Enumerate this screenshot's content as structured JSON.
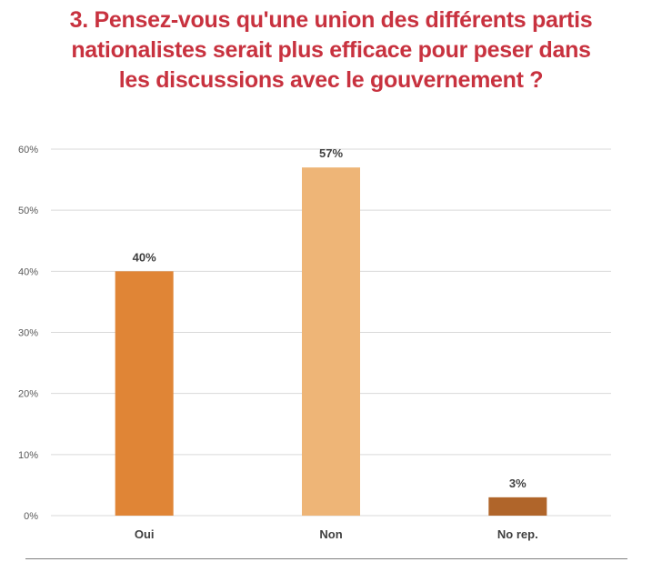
{
  "chart_data": {
    "type": "bar",
    "title_lines": [
      "3. Pensez-vous qu'une union des différents partis",
      "nationalistes serait plus efficace pour peser dans",
      "les discussions avec le gouvernement ?"
    ],
    "categories": [
      "Oui",
      "Non",
      "No rep."
    ],
    "values": [
      40,
      57,
      3
    ],
    "value_labels": [
      "40%",
      "57%",
      "3%"
    ],
    "bar_colors": [
      "#e08536",
      "#eeb577",
      "#b0652a"
    ],
    "ylim": [
      0,
      60
    ],
    "yticks": [
      0,
      10,
      20,
      30,
      40,
      50,
      60
    ],
    "ytick_labels": [
      "0%",
      "10%",
      "20%",
      "30%",
      "40%",
      "50%",
      "60%"
    ],
    "grid": true,
    "xlabel": "",
    "ylabel": ""
  },
  "colors": {
    "title": "#c8323f",
    "grid": "#d9d9d9",
    "axis_text": "#595959",
    "label_text": "#404040"
  }
}
